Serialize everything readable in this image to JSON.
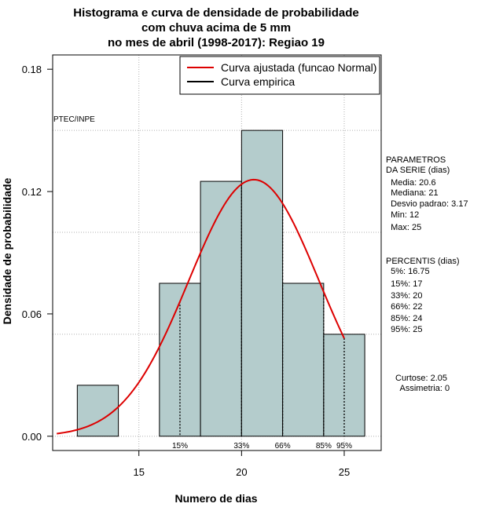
{
  "chart_data": {
    "type": "bar",
    "title": [
      "Histograma e curva de densidade de probabilidade",
      "com chuva acima de 5 mm",
      "no mes de abril (1998-2017): Regiao 19"
    ],
    "xlabel": "Numero de dias",
    "ylabel": "Densidade de probabilidade",
    "xlim": [
      10.8,
      26.8
    ],
    "ylim": [
      -0.007,
      0.187
    ],
    "x_ticks": [
      15,
      20,
      25
    ],
    "y_ticks": [
      0.0,
      0.06,
      0.12,
      0.18
    ],
    "y_tick_labels": [
      "0.00",
      "0.06",
      "0.12",
      "0.18"
    ],
    "grid_y": [
      0.05,
      0.1,
      0.15
    ],
    "grid_x": [
      15,
      20,
      25
    ],
    "bins": [
      {
        "start": 12,
        "end": 14,
        "density": 0.025
      },
      {
        "start": 14,
        "end": 16,
        "density": 0.0
      },
      {
        "start": 16,
        "end": 18,
        "density": 0.075
      },
      {
        "start": 18,
        "end": 20,
        "density": 0.125
      },
      {
        "start": 20,
        "end": 22,
        "density": 0.15
      },
      {
        "start": 22,
        "end": 24,
        "density": 0.075
      },
      {
        "start": 24,
        "end": 26,
        "density": 0.05
      }
    ],
    "normal_curve": {
      "mean": 20.6,
      "sd": 3.17,
      "from": 11,
      "to": 25,
      "color": "#dd0000"
    },
    "percentile_lines": [
      {
        "label": "15%",
        "x": 17
      },
      {
        "label": "33%",
        "x": 20
      },
      {
        "label": "66%",
        "x": 22
      },
      {
        "label": "85%",
        "x": 24
      },
      {
        "label": "95%",
        "x": 25
      }
    ],
    "legend": [
      {
        "label": "Curva ajustada (funcao Normal)",
        "color": "#dd0000"
      },
      {
        "label": "Curva empirica",
        "color": "#000000"
      }
    ],
    "legend_position": "top-right",
    "bar_color": "#b4cccc",
    "annotation": "PTEC/INPE"
  },
  "side_panel": {
    "parametros": [
      "PARAMETROS",
      "DA SERIE (dias)",
      "  Media: 20.6",
      "  Mediana: 21",
      "  Desvio padrao: 3.17",
      "  Min: 12",
      "  Max: 25"
    ],
    "percentis": [
      "PERCENTIS (dias)",
      "  5%: 16.75",
      "  15%: 17",
      "  33%: 20",
      "  66%: 22",
      "  85%: 24",
      "  95%: 25"
    ],
    "stats": [
      "Curtose: 2.05",
      "  Assimetria: 0"
    ]
  }
}
